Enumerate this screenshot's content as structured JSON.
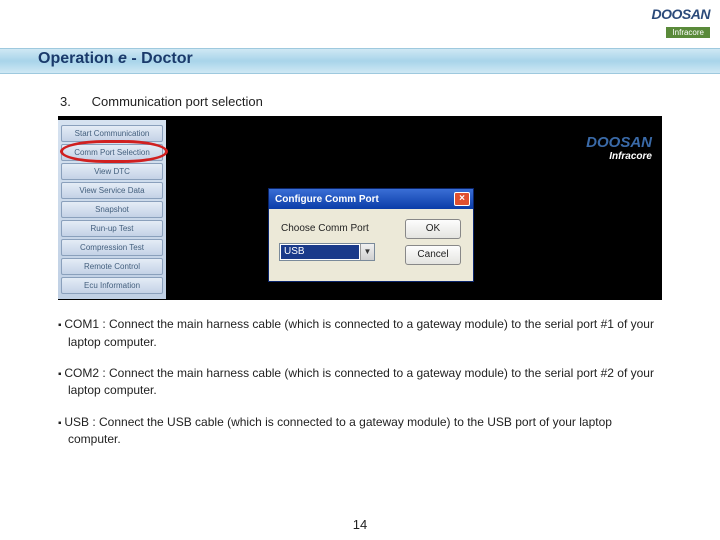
{
  "brand": {
    "name": "DOOSAN",
    "sub": "Infracore"
  },
  "title": {
    "label": "Operation",
    "e": "e",
    "suffix": " - Doctor"
  },
  "section": {
    "num": "3.",
    "label": "Communication port selection"
  },
  "sidebar": {
    "items": [
      "Start Communication",
      "Comm Port Selection",
      "View DTC",
      "View Service Data",
      "Snapshot",
      "Run-up Test",
      "Compression Test",
      "Remote Control",
      "Ecu Information"
    ]
  },
  "dialog": {
    "title": "Configure Comm Port",
    "label": "Choose Comm Port",
    "value": "USB",
    "ok": "OK",
    "cancel": "Cancel"
  },
  "notes": {
    "n1": "COM1 : Connect the main harness cable (which is connected to a gateway module) to the serial port #1 of your laptop computer.",
    "n2": "COM2 : Connect the main harness cable (which is connected to a gateway module) to the serial port #2 of your laptop computer.",
    "n3": "USB : Connect the USB cable (which is connected to a gateway module) to the USB port of your laptop computer."
  },
  "page": "14"
}
